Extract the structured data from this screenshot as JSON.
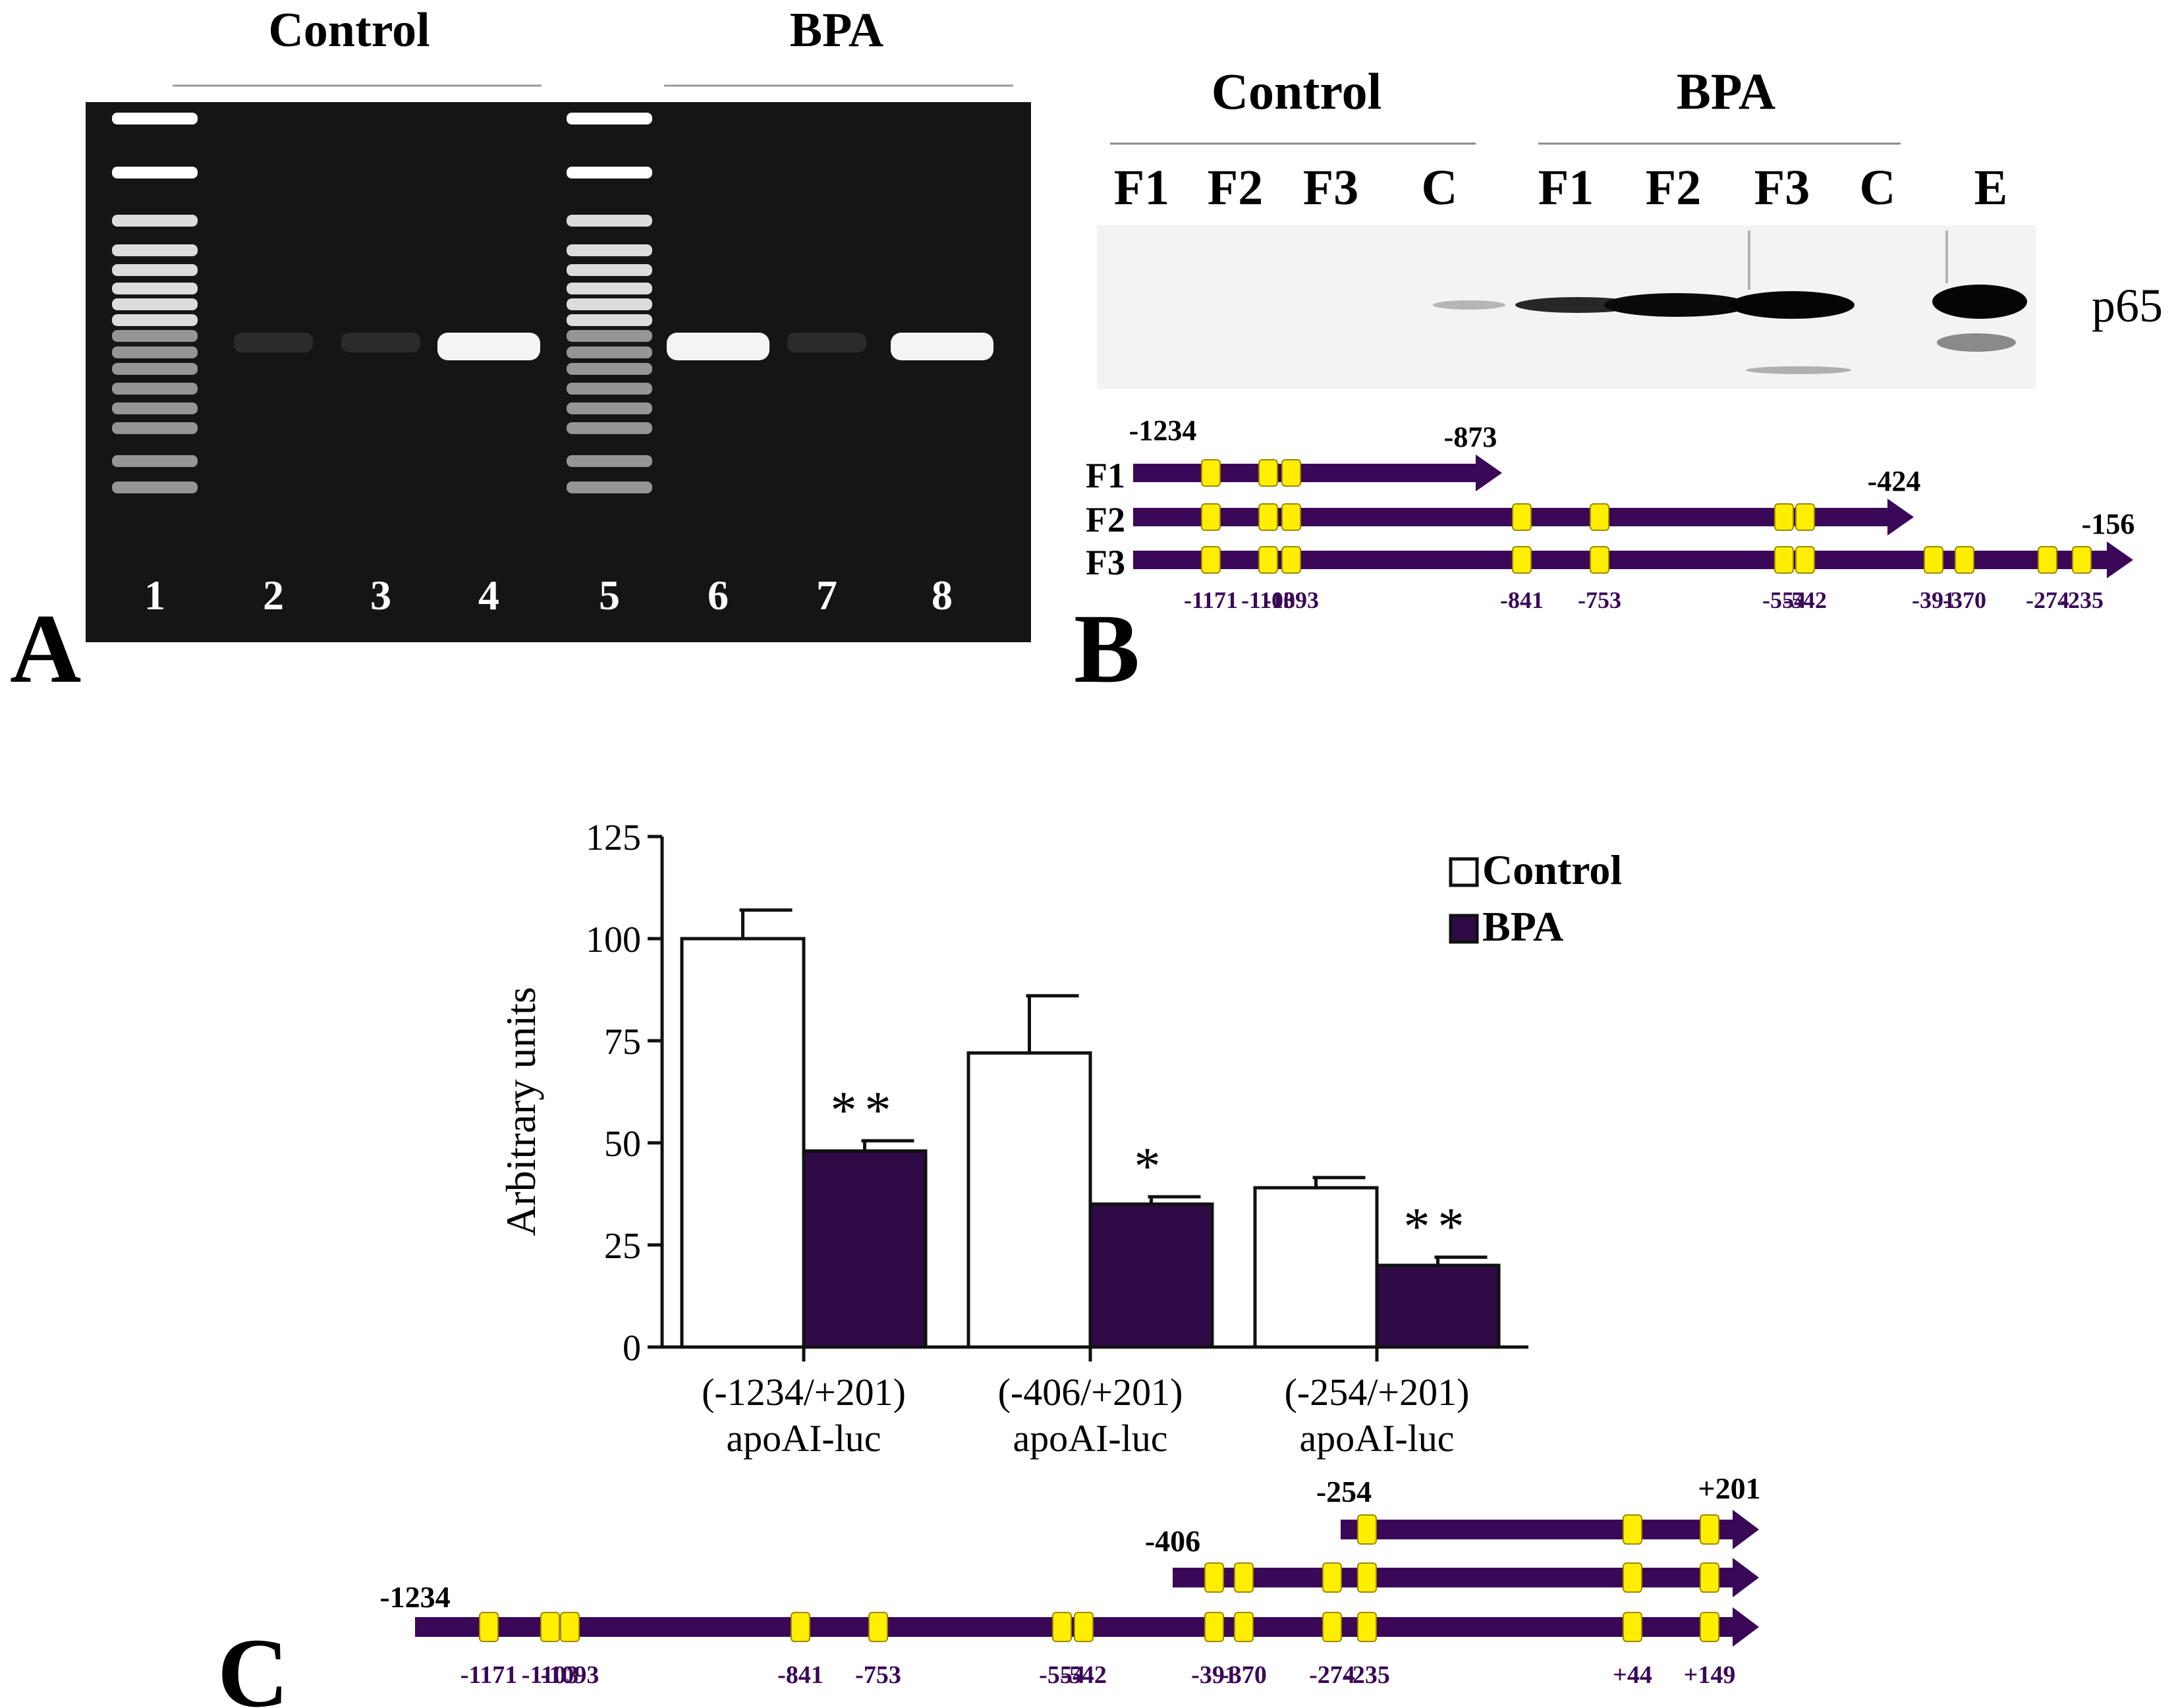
{
  "colors": {
    "bg": "#ffffff",
    "purple": "#3a0857",
    "bpa_fill": "#2e0b47",
    "yellow": "#ffee00",
    "site_text": "#3a0857",
    "gel_bg": "#151515",
    "band": "#f4f4f4"
  },
  "panel_a": {
    "letter": "A",
    "group_labels": [
      "Control",
      "BPA"
    ],
    "lanes": [
      "1",
      "2",
      "3",
      "4",
      "5",
      "6",
      "7",
      "8"
    ],
    "bright_band_lanes": [
      "4",
      "6",
      "8"
    ],
    "ladder_lanes": [
      "1",
      "5"
    ]
  },
  "panel_b": {
    "letter": "B",
    "group_labels": [
      "Control",
      "BPA"
    ],
    "lanes": [
      "F1",
      "F2",
      "F3",
      "C",
      "F1",
      "F2",
      "F3",
      "C",
      "E"
    ],
    "protein": "p65",
    "fragments": [
      {
        "name": "F1",
        "start": "-1234",
        "end": "-873",
        "sites": [
          "-1171",
          "-1103",
          "-1093"
        ]
      },
      {
        "name": "F2",
        "end": "-424",
        "sites": [
          "-1171",
          "-1103",
          "-1093",
          "-841",
          "-753",
          "-554",
          "-542"
        ]
      },
      {
        "name": "F3",
        "end": "-156",
        "sites": [
          "-1171",
          "-1103",
          "-1093",
          "-841",
          "-753",
          "-554",
          "-542",
          "-391",
          "-370",
          "-274",
          "-235"
        ]
      }
    ],
    "site_labels": [
      "-1171",
      "-1103",
      "-1093",
      "-841",
      "-753",
      "-554",
      "-542",
      "-391",
      "-370",
      "-274",
      "-235"
    ]
  },
  "panel_c": {
    "letter": "C",
    "constructs": [
      {
        "start": "-254",
        "end": "+201"
      },
      {
        "start": "-406"
      },
      {
        "start": "-1234"
      }
    ],
    "site_labels": [
      "-1171",
      "-1103",
      "-1093",
      "-841",
      "-753",
      "-554",
      "-542",
      "-391",
      "-370",
      "-274",
      "-235",
      "+44",
      "+149"
    ]
  },
  "chart_data": {
    "type": "bar",
    "ylabel": "Arbitrary units",
    "ylim": [
      0,
      125
    ],
    "yticks": [
      "0",
      "25",
      "50",
      "75",
      "100",
      "125"
    ],
    "categories": [
      {
        "line1": "(-1234/+201)",
        "line2": "apoAI-luc"
      },
      {
        "line1": "(-406/+201)",
        "line2": "apoAI-luc"
      },
      {
        "line1": "(-254/+201)",
        "line2": "apoAI-luc"
      }
    ],
    "series": [
      {
        "name": "Control",
        "values": [
          100,
          72,
          39
        ],
        "errors": [
          7,
          14,
          2.5
        ],
        "sig": [
          "",
          "",
          ""
        ]
      },
      {
        "name": "BPA",
        "values": [
          48,
          35,
          20
        ],
        "errors": [
          2.5,
          1.8,
          2
        ],
        "sig": [
          "**",
          "*",
          "**"
        ]
      }
    ],
    "legend_position": "top-right",
    "grid": false
  }
}
